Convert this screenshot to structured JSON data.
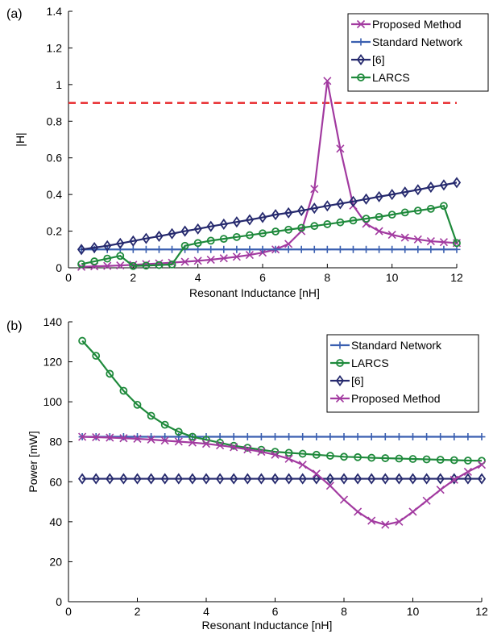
{
  "chart_data": [
    {
      "type": "line",
      "panel_label": "(a)",
      "xlabel": "Resonant Inductance [nH]",
      "ylabel": "|H|",
      "xlim": [
        0,
        12
      ],
      "ylim": [
        0,
        1.4
      ],
      "xticks": [
        0,
        2,
        4,
        6,
        8,
        10,
        12
      ],
      "yticks": [
        0,
        0.2,
        0.4,
        0.6,
        0.8,
        1,
        1.2,
        1.4
      ],
      "ytick_labels": [
        "0",
        "0.2",
        "0.4",
        "0.6",
        "0.8",
        "1",
        "1.2",
        "1.4"
      ],
      "grid": false,
      "legend_position": "top-right",
      "reference_line": {
        "y": 0.9,
        "x_range": [
          0,
          12
        ],
        "color": "#e8272a",
        "style": "dashed"
      },
      "series": [
        {
          "name": "Proposed Method",
          "color": "#a23aa0",
          "marker": "x",
          "x": [
            0.4,
            0.8,
            1.2,
            1.6,
            2.0,
            2.4,
            2.8,
            3.2,
            3.6,
            4.0,
            4.4,
            4.8,
            5.2,
            5.6,
            6.0,
            6.4,
            6.8,
            7.2,
            7.6,
            8.0,
            8.4,
            8.8,
            9.2,
            9.6,
            10.0,
            10.4,
            10.8,
            11.2,
            11.6,
            12.0
          ],
          "y": [
            0.005,
            0.008,
            0.01,
            0.013,
            0.016,
            0.02,
            0.024,
            0.028,
            0.033,
            0.038,
            0.044,
            0.052,
            0.06,
            0.07,
            0.083,
            0.1,
            0.13,
            0.2,
            0.43,
            1.02,
            0.65,
            0.34,
            0.24,
            0.2,
            0.18,
            0.165,
            0.155,
            0.145,
            0.14,
            0.135
          ]
        },
        {
          "name": "Standard Network",
          "color": "#3a5fb0",
          "marker": "+",
          "x": [
            0.4,
            0.8,
            1.2,
            1.6,
            2.0,
            2.4,
            2.8,
            3.2,
            3.6,
            4.0,
            4.4,
            4.8,
            5.2,
            5.6,
            6.0,
            6.4,
            6.8,
            7.2,
            7.6,
            8.0,
            8.4,
            8.8,
            9.2,
            9.6,
            10.0,
            10.4,
            10.8,
            11.2,
            11.6,
            12.0
          ],
          "y": [
            0.1,
            0.1,
            0.1,
            0.1,
            0.1,
            0.1,
            0.1,
            0.1,
            0.1,
            0.1,
            0.1,
            0.1,
            0.1,
            0.1,
            0.1,
            0.1,
            0.1,
            0.1,
            0.1,
            0.1,
            0.1,
            0.1,
            0.1,
            0.1,
            0.1,
            0.1,
            0.1,
            0.1,
            0.1,
            0.1
          ]
        },
        {
          "name": "[6]",
          "color": "#262a6e",
          "marker": "diamond",
          "x": [
            0.4,
            0.8,
            1.2,
            1.6,
            2.0,
            2.4,
            2.8,
            3.2,
            3.6,
            4.0,
            4.4,
            4.8,
            5.2,
            5.6,
            6.0,
            6.4,
            6.8,
            7.2,
            7.6,
            8.0,
            8.4,
            8.8,
            9.2,
            9.6,
            10.0,
            10.4,
            10.8,
            11.2,
            11.6,
            12.0
          ],
          "y": [
            0.1,
            0.11,
            0.12,
            0.133,
            0.146,
            0.16,
            0.172,
            0.186,
            0.2,
            0.212,
            0.226,
            0.238,
            0.25,
            0.262,
            0.275,
            0.29,
            0.3,
            0.312,
            0.325,
            0.338,
            0.35,
            0.362,
            0.375,
            0.388,
            0.4,
            0.413,
            0.426,
            0.44,
            0.452,
            0.465
          ]
        },
        {
          "name": "LARCS",
          "color": "#1f8a3c",
          "marker": "o",
          "x": [
            0.4,
            0.8,
            1.2,
            1.6,
            2.0,
            2.4,
            2.8,
            3.2,
            3.6,
            4.0,
            4.4,
            4.8,
            5.2,
            5.6,
            6.0,
            6.4,
            6.8,
            7.2,
            7.6,
            8.0,
            8.4,
            8.8,
            9.2,
            9.6,
            10.0,
            10.4,
            10.8,
            11.2,
            11.6,
            12.0
          ],
          "y": [
            0.02,
            0.035,
            0.05,
            0.065,
            0.01,
            0.012,
            0.015,
            0.018,
            0.12,
            0.135,
            0.148,
            0.158,
            0.168,
            0.178,
            0.188,
            0.198,
            0.208,
            0.218,
            0.228,
            0.238,
            0.248,
            0.258,
            0.268,
            0.278,
            0.29,
            0.302,
            0.312,
            0.322,
            0.338,
            0.135
          ]
        }
      ]
    },
    {
      "type": "line",
      "panel_label": "(b)",
      "xlabel": "Resonant Inductance [nH]",
      "ylabel": "Power [mW]",
      "xlim": [
        0,
        12
      ],
      "ylim": [
        0,
        140
      ],
      "xticks": [
        0,
        2,
        4,
        6,
        8,
        10,
        12
      ],
      "yticks": [
        0,
        20,
        40,
        60,
        80,
        100,
        120,
        140
      ],
      "ytick_labels": [
        "0",
        "20",
        "40",
        "60",
        "80",
        "100",
        "120",
        "140"
      ],
      "grid": false,
      "legend_position": "top-right",
      "series": [
        {
          "name": "Standard Network",
          "color": "#3a5fb0",
          "marker": "+",
          "x": [
            0.4,
            0.8,
            1.2,
            1.6,
            2.0,
            2.4,
            2.8,
            3.2,
            3.6,
            4.0,
            4.4,
            4.8,
            5.2,
            5.6,
            6.0,
            6.4,
            6.8,
            7.2,
            7.6,
            8.0,
            8.4,
            8.8,
            9.2,
            9.6,
            10.0,
            10.4,
            10.8,
            11.2,
            11.6,
            12.0
          ],
          "y": [
            82.5,
            82.5,
            82.5,
            82.5,
            82.5,
            82.5,
            82.5,
            82.5,
            82.5,
            82.5,
            82.5,
            82.5,
            82.5,
            82.5,
            82.5,
            82.5,
            82.5,
            82.5,
            82.5,
            82.5,
            82.5,
            82.5,
            82.5,
            82.5,
            82.5,
            82.5,
            82.5,
            82.5,
            82.5,
            82.5
          ]
        },
        {
          "name": "LARCS",
          "color": "#1f8a3c",
          "marker": "o",
          "x": [
            0.4,
            0.8,
            1.2,
            1.6,
            2.0,
            2.4,
            2.8,
            3.2,
            3.6,
            4.0,
            4.4,
            4.8,
            5.2,
            5.6,
            6.0,
            6.4,
            6.8,
            7.2,
            7.6,
            8.0,
            8.4,
            8.8,
            9.2,
            9.6,
            10.0,
            10.4,
            10.8,
            11.2,
            11.6,
            12.0
          ],
          "y": [
            130.5,
            123,
            114,
            105.5,
            98.5,
            93,
            88.5,
            85,
            82.5,
            81,
            79.5,
            78,
            77,
            76,
            75,
            74.5,
            74,
            73.5,
            73,
            72.5,
            72.3,
            72,
            71.8,
            71.6,
            71.4,
            71.2,
            71,
            70.8,
            70.6,
            70.5
          ]
        },
        {
          "name": "[6]",
          "color": "#262a6e",
          "marker": "diamond",
          "x": [
            0.4,
            0.8,
            1.2,
            1.6,
            2.0,
            2.4,
            2.8,
            3.2,
            3.6,
            4.0,
            4.4,
            4.8,
            5.2,
            5.6,
            6.0,
            6.4,
            6.8,
            7.2,
            7.6,
            8.0,
            8.4,
            8.8,
            9.2,
            9.6,
            10.0,
            10.4,
            10.8,
            11.2,
            11.6,
            12.0
          ],
          "y": [
            61.5,
            61.5,
            61.5,
            61.5,
            61.5,
            61.5,
            61.5,
            61.5,
            61.5,
            61.5,
            61.5,
            61.5,
            61.5,
            61.5,
            61.5,
            61.5,
            61.5,
            61.5,
            61.5,
            61.5,
            61.5,
            61.5,
            61.5,
            61.5,
            61.5,
            61.5,
            61.5,
            61.5,
            61.5,
            61.5
          ]
        },
        {
          "name": "Proposed Method",
          "color": "#a23aa0",
          "marker": "x",
          "x": [
            0.4,
            0.8,
            1.2,
            1.6,
            2.0,
            2.4,
            2.8,
            3.2,
            3.6,
            4.0,
            4.4,
            4.8,
            5.2,
            5.6,
            6.0,
            6.4,
            6.8,
            7.2,
            7.6,
            8.0,
            8.4,
            8.8,
            9.2,
            9.6,
            10.0,
            10.4,
            10.8,
            11.2,
            11.6,
            12.0
          ],
          "y": [
            82.5,
            82.3,
            82.1,
            81.8,
            81.5,
            81.1,
            80.6,
            80.1,
            79.6,
            79,
            78.2,
            77.3,
            76.2,
            75,
            73.5,
            71.5,
            68.5,
            64,
            58,
            51,
            45,
            40.5,
            38.5,
            40,
            45,
            50.5,
            56,
            61,
            65,
            68.5
          ]
        }
      ]
    }
  ]
}
